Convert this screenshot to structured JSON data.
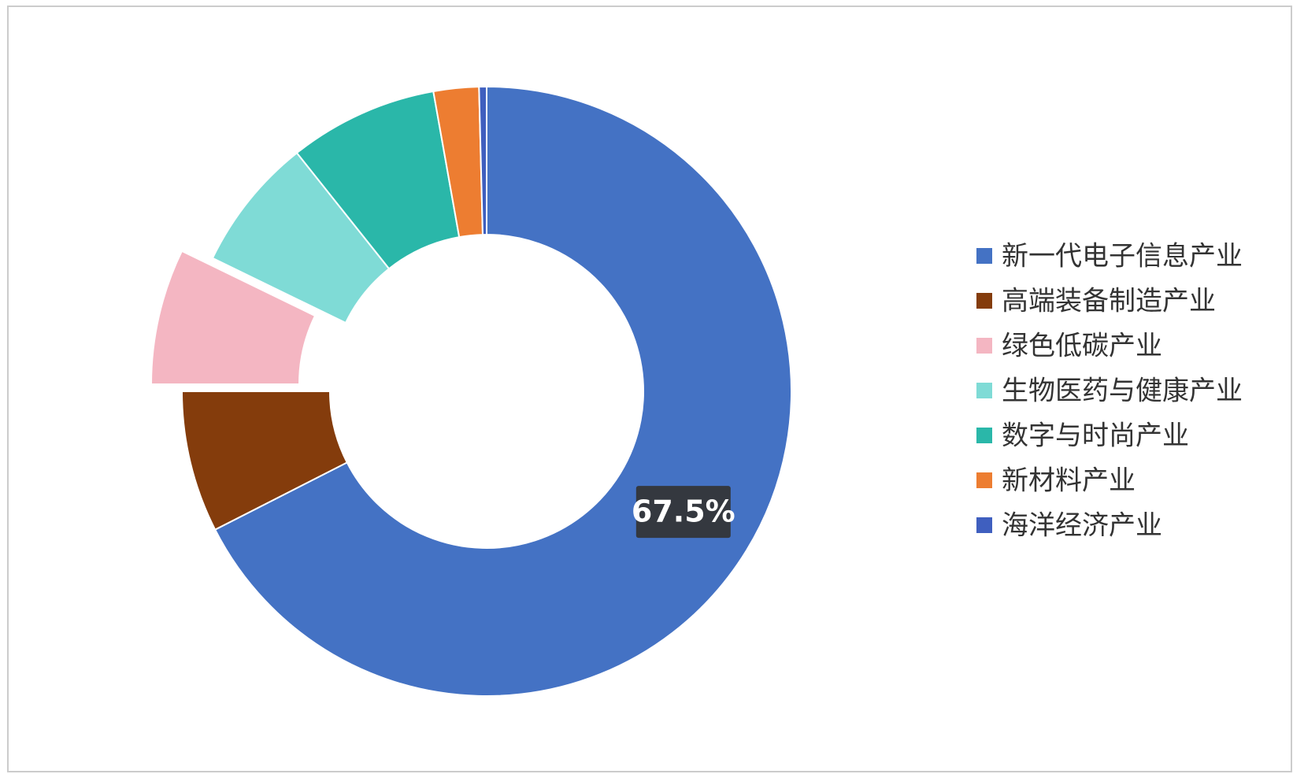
{
  "chart_data": {
    "type": "donut",
    "categories": [
      "新一代电子信息产业",
      "高端装备制造产业",
      "绿色低碳产业",
      "生物医药与健康产业",
      "数字与时尚产业",
      "新材料产业",
      "海洋经济产业"
    ],
    "values": [
      67.5,
      7.5,
      7.2,
      7.1,
      7.9,
      2.4,
      0.4
    ],
    "value_labels": [
      "67.5%",
      null,
      null,
      null,
      null,
      null,
      null
    ],
    "colors": [
      "#4472c4",
      "#843c0c",
      "#f4b6c2",
      "#7fdbd6",
      "#2ab7a9",
      "#ed7d31",
      "#3f5fbf"
    ],
    "explode": [
      false,
      false,
      true,
      false,
      false,
      false,
      false
    ],
    "legend": "right"
  }
}
